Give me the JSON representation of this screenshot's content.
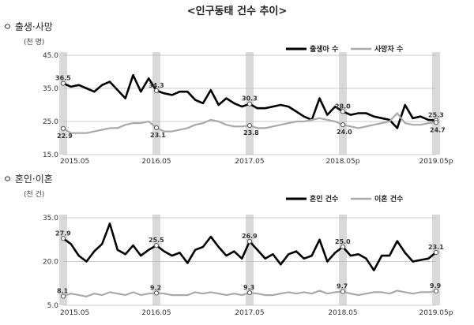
{
  "title": "<인구동태 건수 추이>",
  "sections": [
    {
      "heading": "ㅇ 출생·사망",
      "unit": "(천 명)"
    },
    {
      "heading": "ㅇ 혼인·이혼",
      "unit": "(천 건)"
    }
  ],
  "chart_data": [
    {
      "type": "line",
      "x_ticks": [
        "2015.05",
        "2016.05",
        "2017.05",
        "2018.05p",
        "2019.05p"
      ],
      "ylim": [
        15.0,
        45.0
      ],
      "y_ticks": [
        "45.0",
        "35.0",
        "25.0",
        "15.0"
      ],
      "y_tick_values": [
        45,
        35,
        25,
        15
      ],
      "highlight_months": [
        0,
        12,
        24,
        36,
        48
      ],
      "series": [
        {
          "name": "출생아 수",
          "color": "#000000",
          "values": [
            36.5,
            35.5,
            36.0,
            35.0,
            34.0,
            36.0,
            37.0,
            34.5,
            32.0,
            39.0,
            34.0,
            38.0,
            34.3,
            33.5,
            33.0,
            34.0,
            34.0,
            31.5,
            30.5,
            34.5,
            30.0,
            32.0,
            30.5,
            29.5,
            30.3,
            29.0,
            29.0,
            29.5,
            30.0,
            29.5,
            28.0,
            26.5,
            25.5,
            32.0,
            27.0,
            29.5,
            28.0,
            27.0,
            27.5,
            27.5,
            26.5,
            26.0,
            25.5,
            23.0,
            30.0,
            26.0,
            26.5,
            25.5,
            25.3
          ],
          "labels": [
            {
              "i": 0,
              "text": "36.5"
            },
            {
              "i": 12,
              "text": "34.3"
            },
            {
              "i": 24,
              "text": "30.3"
            },
            {
              "i": 36,
              "text": "28.0"
            },
            {
              "i": 48,
              "text": "25.3"
            }
          ]
        },
        {
          "name": "사망자 수",
          "color": "#a9a9a9",
          "values": [
            22.9,
            21.5,
            21.5,
            21.5,
            22.0,
            22.5,
            23.0,
            23.0,
            24.0,
            24.5,
            24.5,
            25.0,
            23.1,
            22.0,
            22.0,
            22.5,
            23.0,
            24.0,
            24.5,
            25.5,
            25.0,
            24.0,
            23.5,
            23.5,
            23.8,
            23.0,
            23.0,
            23.5,
            24.0,
            24.5,
            25.0,
            25.0,
            25.5,
            26.0,
            25.5,
            25.0,
            24.0,
            23.5,
            23.0,
            23.5,
            24.0,
            24.5,
            25.0,
            27.5,
            24.5,
            24.0,
            24.0,
            24.5,
            24.7
          ],
          "labels": [
            {
              "i": 0,
              "text": "22.9"
            },
            {
              "i": 12,
              "text": "23.1"
            },
            {
              "i": 24,
              "text": "23.8"
            },
            {
              "i": 36,
              "text": "24.0"
            },
            {
              "i": 48,
              "text": "24.7"
            }
          ]
        }
      ]
    },
    {
      "type": "line",
      "x_ticks": [
        "2015.05",
        "2016.05",
        "2017.05",
        "2018.05",
        "2019.05p"
      ],
      "ylim": [
        5.0,
        35.0
      ],
      "y_ticks": [
        "35.0",
        "20.0",
        "5.0"
      ],
      "y_tick_values": [
        35,
        20,
        5
      ],
      "highlight_months": [
        0,
        12,
        24,
        36,
        48
      ],
      "series": [
        {
          "name": "혼인 건수",
          "color": "#000000",
          "values": [
            27.9,
            26.0,
            22.0,
            20.0,
            23.5,
            26.0,
            33.0,
            24.0,
            22.5,
            25.5,
            22.0,
            24.0,
            25.5,
            23.5,
            22.0,
            23.0,
            19.5,
            24.0,
            25.0,
            28.5,
            25.0,
            22.0,
            23.5,
            21.0,
            26.9,
            24.0,
            21.0,
            22.5,
            19.0,
            22.5,
            23.5,
            21.0,
            22.0,
            27.5,
            20.0,
            23.0,
            25.0,
            22.0,
            22.5,
            21.0,
            17.0,
            22.0,
            22.0,
            27.0,
            23.0,
            20.0,
            20.5,
            21.0,
            23.1
          ],
          "labels": [
            {
              "i": 0,
              "text": "27.9"
            },
            {
              "i": 12,
              "text": "25.5"
            },
            {
              "i": 24,
              "text": "26.9"
            },
            {
              "i": 36,
              "text": "25.0"
            },
            {
              "i": 48,
              "text": "23.1"
            }
          ]
        },
        {
          "name": "이혼 건수",
          "color": "#a9a9a9",
          "values": [
            8.1,
            9.0,
            8.5,
            8.0,
            9.0,
            8.5,
            9.5,
            9.0,
            8.5,
            9.5,
            8.5,
            9.0,
            9.2,
            9.0,
            8.5,
            8.5,
            8.5,
            9.5,
            9.0,
            9.5,
            9.0,
            8.5,
            9.0,
            8.5,
            9.3,
            9.0,
            8.5,
            8.5,
            9.0,
            9.5,
            9.0,
            9.5,
            9.0,
            10.0,
            9.0,
            9.5,
            9.7,
            9.0,
            8.5,
            9.0,
            9.5,
            9.5,
            9.0,
            10.0,
            9.5,
            9.0,
            9.5,
            9.5,
            9.9
          ],
          "labels": [
            {
              "i": 0,
              "text": "8.1"
            },
            {
              "i": 12,
              "text": "9.2"
            },
            {
              "i": 24,
              "text": "9.3"
            },
            {
              "i": 36,
              "text": "9.7"
            },
            {
              "i": 48,
              "text": "9.9"
            }
          ]
        }
      ]
    }
  ]
}
